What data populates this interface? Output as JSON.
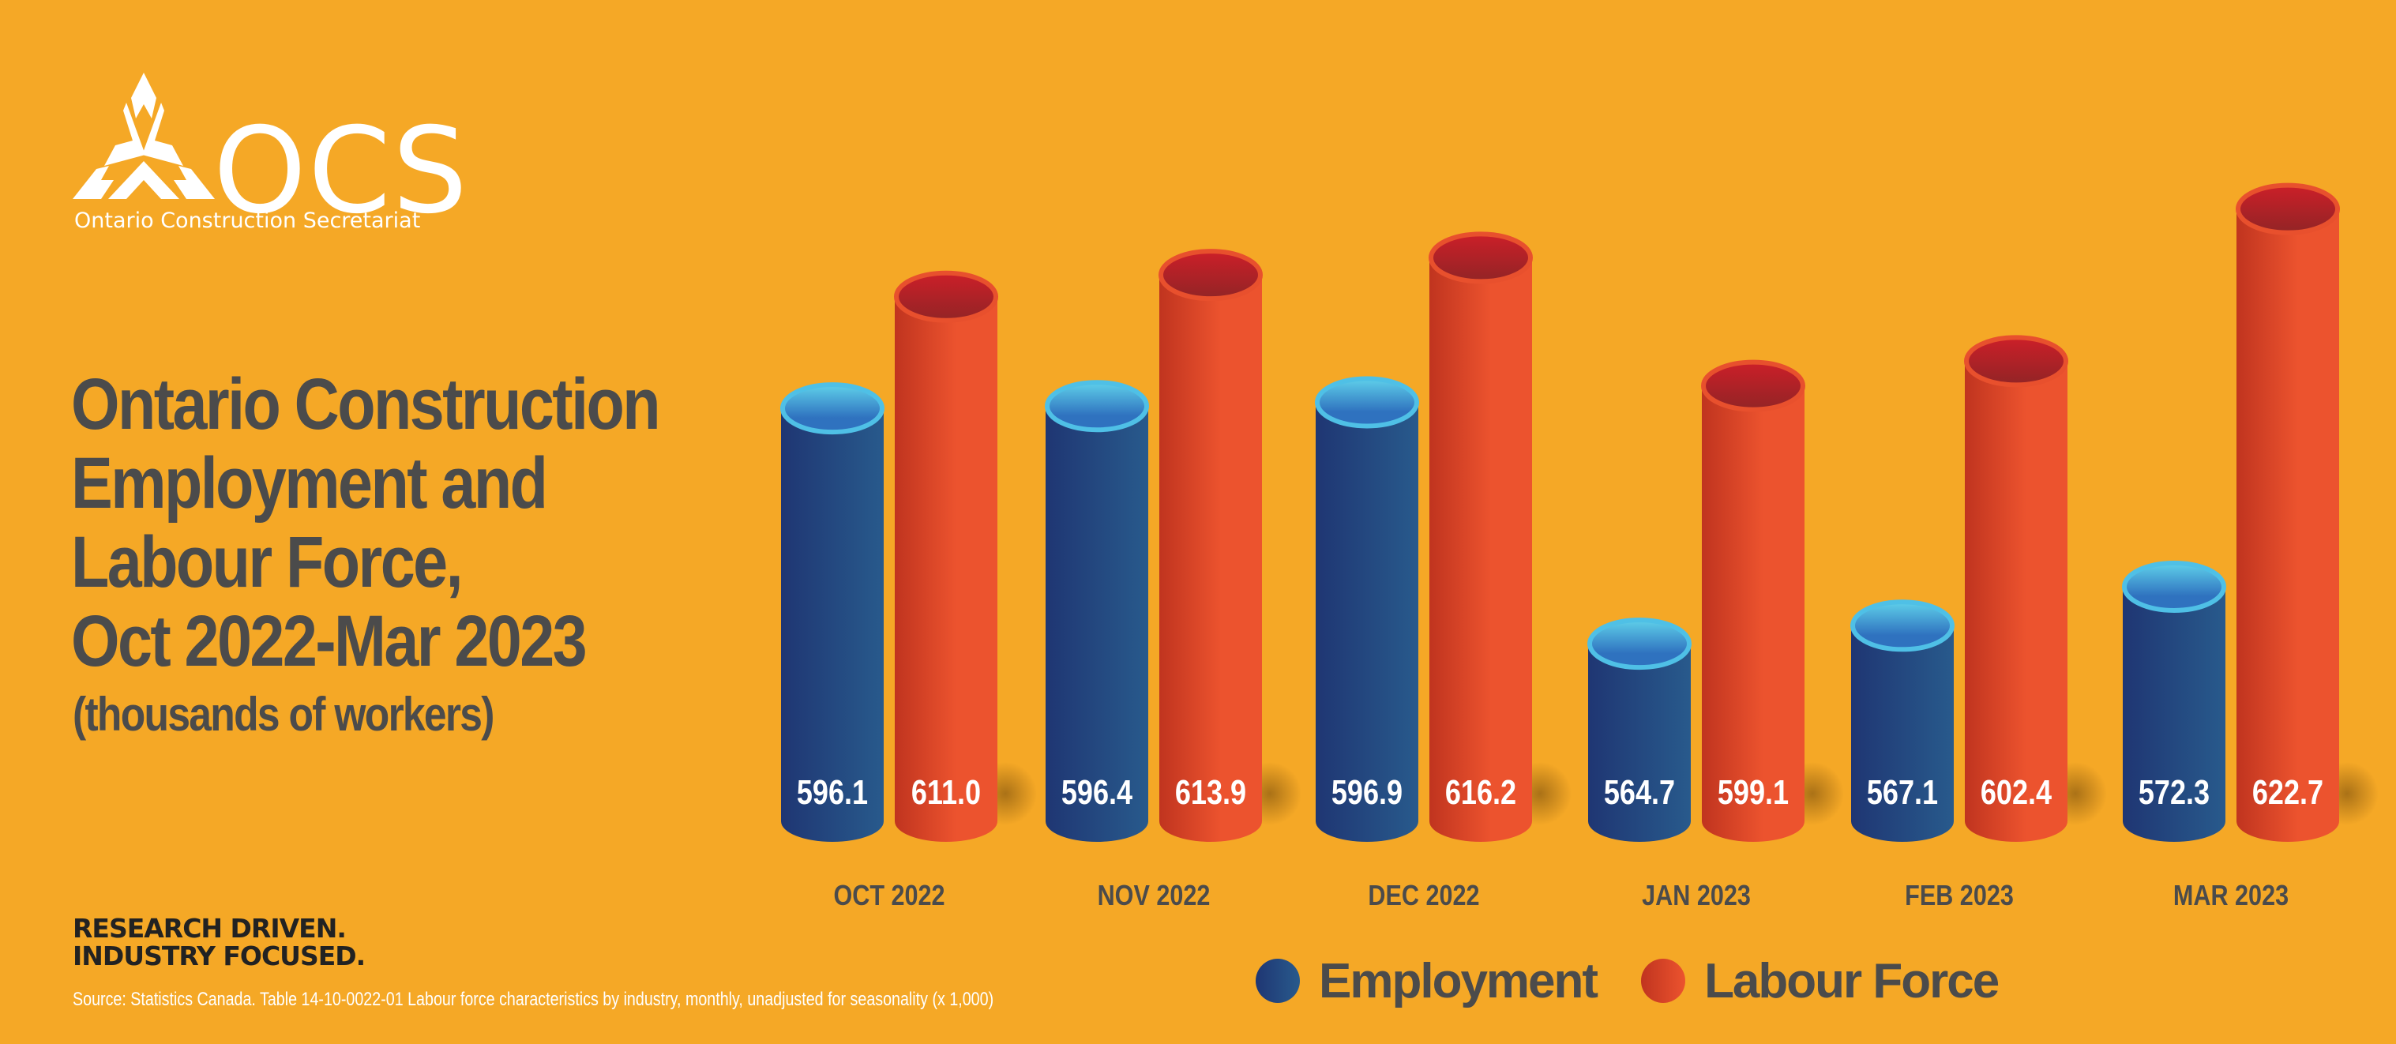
{
  "brand": {
    "logo_text": "OCS",
    "organization": "Ontario Construction Secretariat",
    "tagline_line1": "RESEARCH DRIVEN.",
    "tagline_line2": "INDUSTRY FOCUSED."
  },
  "colors": {
    "background": "#f5a826",
    "employment": "#234a84",
    "employment_top": "#4fb8e0",
    "labour_force": "#e8502d",
    "labour_force_top": "#b2262a",
    "text_dark": "#4b4b4b"
  },
  "source": "Source: Statistics Canada. Table 14-10-0022-01  Labour force characteristics by industry, monthly, unadjusted for seasonality (x 1,000)",
  "chart_data": {
    "type": "bar",
    "title_lines": [
      "Ontario Construction",
      "Employment and",
      "Labour Force,",
      "Oct 2022-Mar 2023"
    ],
    "subtitle": "(thousands of workers)",
    "xlabel": "",
    "ylabel": "thousands of workers",
    "categories": [
      "OCT 2022",
      "NOV 2022",
      "DEC 2022",
      "JAN 2023",
      "FEB 2023",
      "MAR 2023"
    ],
    "series": [
      {
        "name": "Employment",
        "values": [
          596.1,
          596.4,
          596.9,
          564.7,
          567.1,
          572.3
        ]
      },
      {
        "name": "Labour Force",
        "values": [
          611.0,
          613.9,
          616.2,
          599.1,
          602.4,
          622.7
        ]
      }
    ],
    "value_labels": [
      [
        "596.1",
        "596.4",
        "596.9",
        "564.7",
        "567.1",
        "572.3"
      ],
      [
        "611.0",
        "613.9",
        "616.2",
        "599.1",
        "602.4",
        "622.7"
      ]
    ],
    "ylim": [
      541,
      640
    ],
    "grid": false,
    "legend_position": "bottom-right",
    "style": "3d-cylinder"
  }
}
